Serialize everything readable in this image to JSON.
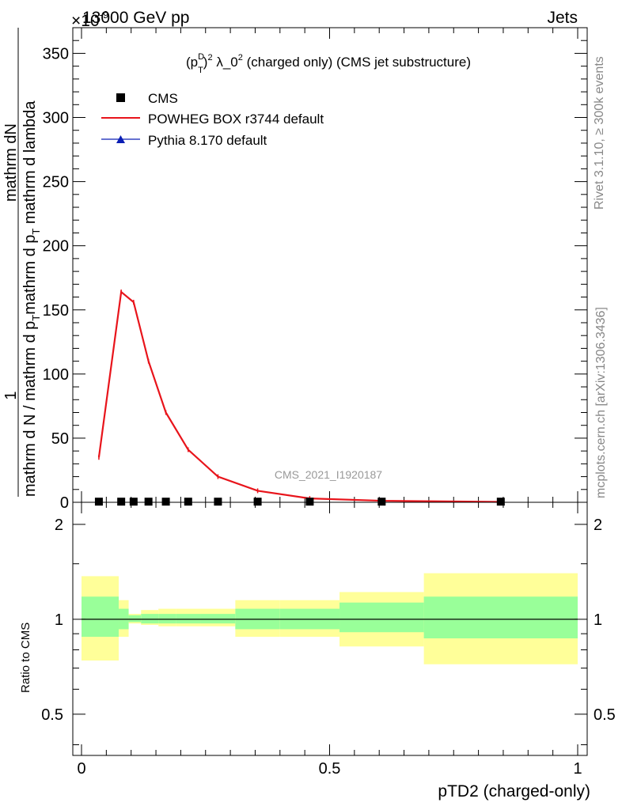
{
  "header": {
    "left": "13000 GeV pp",
    "right": "Jets",
    "multiplier": "×10",
    "multiplier_exp": "-9"
  },
  "side_labels": {
    "rivet": "Rivet 3.1.10, ≥ 300k events",
    "mcplots": "mcplots.cern.ch [arXiv:1306.3436]"
  },
  "main_plot": {
    "title_prefix": "(p",
    "title_sup_D": "D",
    "title_sub_T": "T",
    "title_mid": ")",
    "title_sup_2": "2",
    "title_lambda": " λ_0",
    "title_sup_2b": "2",
    "title_rest": " (charged only) (CMS jet substructure)",
    "ylabel_num": "1",
    "ylabel_den": "mathrm d N / mathrm d p",
    "ylabel_den_sub": "T",
    "ylabel_den2": "mathrm d p",
    "ylabel_den2_sub": "T",
    "ylabel_den3": " mathrm d lambda",
    "ylabel_num2": "mathrm d",
    "ylabel_num2_N": "N",
    "watermark": "CMS_2021_I1920187",
    "legend": [
      {
        "label": "CMS",
        "marker": "square",
        "color": "#000000"
      },
      {
        "label": "POWHEG BOX r3744 default",
        "marker": "line",
        "color": "#e8141b"
      },
      {
        "label": "Pythia 8.170 default",
        "marker": "triangle",
        "color": "#0a1eb4"
      }
    ]
  },
  "ratio_plot": {
    "ylabel": "Ratio to CMS",
    "xlabel": "pTD2 (charged-only)"
  },
  "chart_data": {
    "type": "line",
    "xlim": [
      0,
      1
    ],
    "ylim": [
      0,
      370
    ],
    "x_ticks": [
      0,
      0.5,
      1
    ],
    "x_tick_labels": [
      "0",
      "0.5",
      "1"
    ],
    "y_ticks": [
      0,
      50,
      100,
      150,
      200,
      250,
      300,
      350
    ],
    "y_tick_labels": [
      "0",
      "50",
      "100",
      "150",
      "200",
      "250",
      "300",
      "350"
    ],
    "bins": [
      {
        "lo": 0.0,
        "hi": 0.075,
        "x": 0.035
      },
      {
        "lo": 0.075,
        "hi": 0.095,
        "x": 0.08
      },
      {
        "lo": 0.095,
        "hi": 0.12,
        "x": 0.105
      },
      {
        "lo": 0.12,
        "hi": 0.155,
        "x": 0.135
      },
      {
        "lo": 0.155,
        "hi": 0.19,
        "x": 0.17
      },
      {
        "lo": 0.19,
        "hi": 0.24,
        "x": 0.215
      },
      {
        "lo": 0.24,
        "hi": 0.31,
        "x": 0.275
      },
      {
        "lo": 0.31,
        "hi": 0.4,
        "x": 0.355
      },
      {
        "lo": 0.4,
        "hi": 0.52,
        "x": 0.46
      },
      {
        "lo": 0.52,
        "hi": 0.69,
        "x": 0.605
      },
      {
        "lo": 0.69,
        "hi": 1.0,
        "x": 0.845
      }
    ],
    "series": [
      {
        "name": "CMS",
        "values": [
          0.5,
          0.5,
          0.5,
          0.5,
          0.5,
          0.5,
          0.5,
          0.5,
          0.5,
          0.5,
          0.5
        ]
      },
      {
        "name": "POWHEG BOX r3744 default",
        "x": [
          0.035,
          0.08,
          0.105,
          0.135,
          0.17,
          0.215,
          0.275,
          0.355,
          0.46,
          0.605,
          0.845
        ],
        "values": [
          35,
          164,
          156,
          110,
          70,
          41,
          20,
          9,
          3,
          1.2,
          0.3
        ]
      }
    ],
    "ratio": {
      "ylim": [
        0.37,
        2.35
      ],
      "y_scale": "log",
      "y_ticks": [
        0.5,
        1,
        2
      ],
      "y_tick_labels": [
        "0.5",
        "1",
        "2"
      ],
      "band_outer": [
        [
          0.74,
          1.37
        ],
        [
          0.88,
          1.15
        ],
        [
          0.97,
          1.04
        ],
        [
          0.96,
          1.07
        ],
        [
          0.95,
          1.08
        ],
        [
          0.95,
          1.08
        ],
        [
          0.95,
          1.08
        ],
        [
          0.88,
          1.15
        ],
        [
          0.88,
          1.15
        ],
        [
          0.82,
          1.22
        ],
        [
          0.72,
          1.4
        ]
      ],
      "band_inner": [
        [
          0.88,
          1.18
        ],
        [
          0.93,
          1.08
        ],
        [
          0.98,
          1.03
        ],
        [
          0.97,
          1.04
        ],
        [
          0.97,
          1.04
        ],
        [
          0.97,
          1.04
        ],
        [
          0.97,
          1.04
        ],
        [
          0.93,
          1.08
        ],
        [
          0.93,
          1.08
        ],
        [
          0.91,
          1.13
        ],
        [
          0.87,
          1.18
        ]
      ],
      "outer_color": "#ffff99",
      "inner_color": "#99ff99"
    }
  }
}
